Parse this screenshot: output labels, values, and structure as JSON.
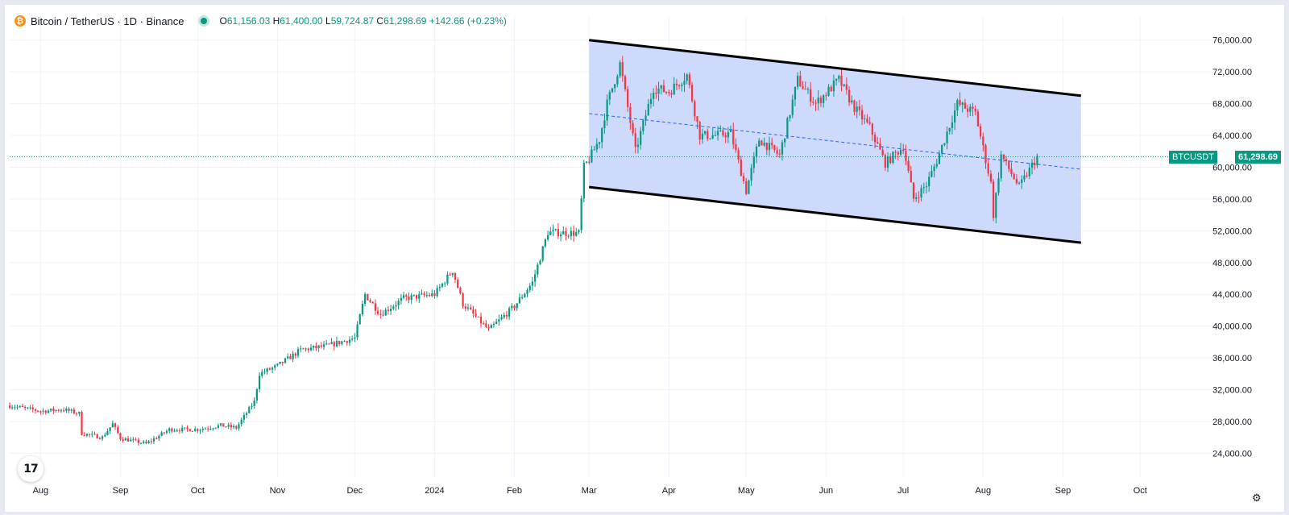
{
  "legend": {
    "symbol": "Bitcoin / TetherUS · 1D · Binance",
    "open_label": "O",
    "open": "61,156.03",
    "high_label": "H",
    "high": "61,400.00",
    "low_label": "L",
    "low": "59,724.87",
    "close_label": "C",
    "close": "61,298.69",
    "change": "+142.66 (+0.23%)"
  },
  "price_tag": {
    "ticker": "BTCUSDT",
    "price": "61,298.69"
  },
  "logo": "17",
  "colors": {
    "up": "#089981",
    "down": "#f23645",
    "channel_fill": "#c9d6fb",
    "channel_line": "#000000",
    "grid": "#f0f3fa",
    "axis_text": "#131722"
  },
  "chart_data": {
    "type": "candlestick",
    "title": "Bitcoin / TetherUS · 1D · Binance",
    "ylim": [
      21000,
      78000
    ],
    "yticks": [
      "24,000.00",
      "28,000.00",
      "32,000.00",
      "36,000.00",
      "40,000.00",
      "44,000.00",
      "48,000.00",
      "52,000.00",
      "56,000.00",
      "60,000.00",
      "64,000.00",
      "68,000.00",
      "72,000.00",
      "76,000.00"
    ],
    "ytick_values": [
      24000,
      28000,
      32000,
      36000,
      40000,
      44000,
      48000,
      52000,
      56000,
      60000,
      64000,
      68000,
      72000,
      76000
    ],
    "xticks": [
      "Aug",
      "Sep",
      "Oct",
      "Nov",
      "Dec",
      "2024",
      "Feb",
      "Mar",
      "Apr",
      "May",
      "Jun",
      "Jul",
      "Aug",
      "Sep",
      "Oct"
    ],
    "xtick_dates": [
      "2023-08-01",
      "2023-09-01",
      "2023-10-01",
      "2023-11-01",
      "2023-12-01",
      "2024-01-01",
      "2024-02-01",
      "2024-03-01",
      "2024-04-01",
      "2024-05-01",
      "2024-06-01",
      "2024-07-01",
      "2024-08-01",
      "2024-09-01",
      "2024-10-01"
    ],
    "xlim": [
      "2023-07-20",
      "2024-10-30"
    ],
    "grid": true,
    "last_price": 61298.69,
    "close_path": [
      [
        "2023-07-20",
        30000
      ],
      [
        "2023-08-01",
        29300
      ],
      [
        "2023-08-10",
        29500
      ],
      [
        "2023-08-16",
        29000
      ],
      [
        "2023-08-17",
        26500
      ],
      [
        "2023-08-25",
        26000
      ],
      [
        "2023-08-29",
        27700
      ],
      [
        "2023-09-01",
        25900
      ],
      [
        "2023-09-11",
        25200
      ],
      [
        "2023-09-20",
        27000
      ],
      [
        "2023-10-01",
        27000
      ],
      [
        "2023-10-10",
        27500
      ],
      [
        "2023-10-16",
        27200
      ],
      [
        "2023-10-23",
        30500
      ],
      [
        "2023-10-25",
        34000
      ],
      [
        "2023-11-01",
        35000
      ],
      [
        "2023-11-10",
        37000
      ],
      [
        "2023-11-20",
        37500
      ],
      [
        "2023-12-01",
        38500
      ],
      [
        "2023-12-05",
        44000
      ],
      [
        "2023-12-11",
        41500
      ],
      [
        "2023-12-20",
        43500
      ],
      [
        "2024-01-01",
        44000
      ],
      [
        "2024-01-08",
        47000
      ],
      [
        "2024-01-12",
        42800
      ],
      [
        "2024-01-22",
        39500
      ],
      [
        "2024-02-01",
        42500
      ],
      [
        "2024-02-08",
        45500
      ],
      [
        "2024-02-14",
        51800
      ],
      [
        "2024-02-26",
        51700
      ],
      [
        "2024-02-28",
        60000
      ],
      [
        "2024-03-01",
        61000
      ],
      [
        "2024-03-05",
        63500
      ],
      [
        "2024-03-08",
        68000
      ],
      [
        "2024-03-13",
        73000
      ],
      [
        "2024-03-19",
        62000
      ],
      [
        "2024-03-26",
        70000
      ],
      [
        "2024-04-01",
        69500
      ],
      [
        "2024-04-08",
        71600
      ],
      [
        "2024-04-13",
        64000
      ],
      [
        "2024-04-19",
        64000
      ],
      [
        "2024-04-25",
        64300
      ],
      [
        "2024-05-01",
        57000
      ],
      [
        "2024-05-06",
        63500
      ],
      [
        "2024-05-14",
        61500
      ],
      [
        "2024-05-21",
        71000
      ],
      [
        "2024-05-28",
        68000
      ],
      [
        "2024-06-06",
        71000
      ],
      [
        "2024-06-12",
        67500
      ],
      [
        "2024-06-18",
        65000
      ],
      [
        "2024-06-24",
        60500
      ],
      [
        "2024-07-01",
        62600
      ],
      [
        "2024-07-05",
        56000
      ],
      [
        "2024-07-10",
        57800
      ],
      [
        "2024-07-14",
        60800
      ],
      [
        "2024-07-22",
        68000
      ],
      [
        "2024-07-29",
        66800
      ],
      [
        "2024-08-04",
        58000
      ],
      [
        "2024-08-05",
        54000
      ],
      [
        "2024-08-08",
        61500
      ],
      [
        "2024-08-15",
        57500
      ],
      [
        "2024-08-22",
        61300
      ]
    ],
    "candles_up_color": "#089981",
    "candles_down_color": "#f23645",
    "channel": {
      "upper": [
        [
          "2024-03-01",
          76000
        ],
        [
          "2024-09-08",
          69000
        ]
      ],
      "lower": [
        [
          "2024-03-01",
          57500
        ],
        [
          "2024-09-08",
          50500
        ]
      ],
      "mid": [
        [
          "2024-03-01",
          66750
        ],
        [
          "2024-09-08",
          59750
        ]
      ]
    }
  }
}
